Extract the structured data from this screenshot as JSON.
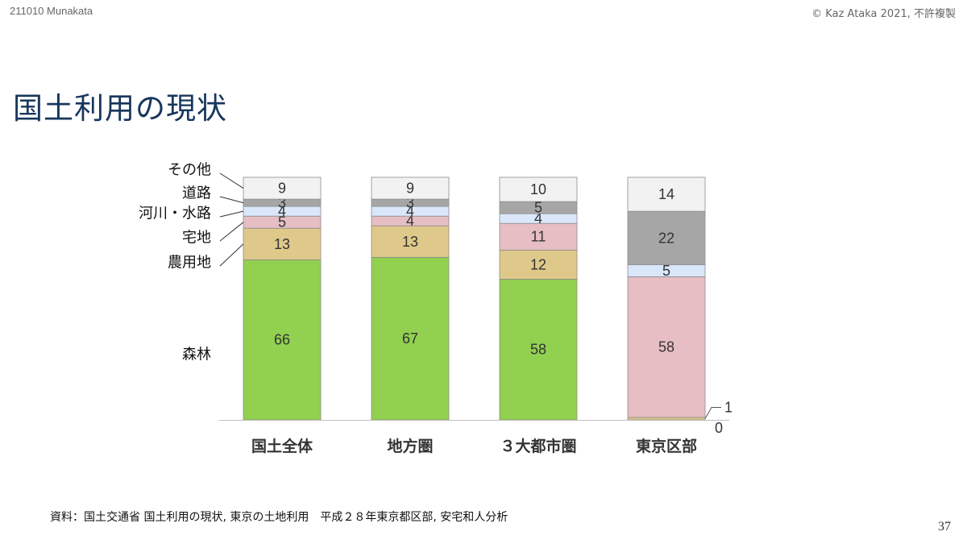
{
  "header": {
    "left": "211010 Munakata",
    "right": "© Kaz Ataka 2021, 不許複製"
  },
  "title": "国土利用の現状",
  "source": "資料：国土交通省 国土利用の現状, 東京の土地利用　平成２８年東京都区部, 安宅和人分析",
  "page_number": "37",
  "chart_data": {
    "type": "bar",
    "stacked": true,
    "title": "",
    "xlabel": "",
    "ylabel": "",
    "ylim": [
      0,
      100
    ],
    "grid": false,
    "legend": "left",
    "categories": [
      "国土全体",
      "地方圏",
      "３大都市圏",
      "東京区部"
    ],
    "series": [
      {
        "name": "森林",
        "color": "#92d050",
        "values": [
          66,
          67,
          58,
          0
        ]
      },
      {
        "name": "農用地",
        "color": "#dfc98a",
        "values": [
          13,
          13,
          12,
          1
        ]
      },
      {
        "name": "宅地",
        "color": "#e6bec4",
        "values": [
          5,
          4,
          11,
          58
        ]
      },
      {
        "name": "河川・水路",
        "color": "#dae7fb",
        "values": [
          4,
          4,
          4,
          5
        ]
      },
      {
        "name": "道路",
        "color": "#a6a6a6",
        "values": [
          3,
          3,
          5,
          22
        ]
      },
      {
        "name": "その他",
        "color": "#f2f2f2",
        "values": [
          9,
          9,
          10,
          14
        ]
      }
    ]
  }
}
